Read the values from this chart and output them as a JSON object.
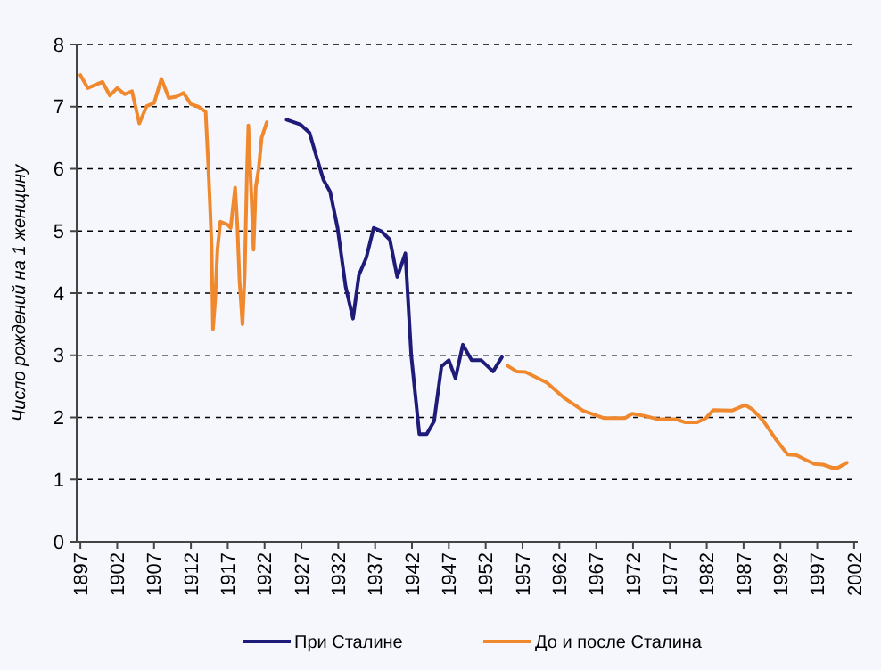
{
  "chart_data": {
    "type": "line",
    "ylabel": "Число рождений на 1 женщину",
    "xlim": [
      1896.5,
      2002.5
    ],
    "ylim": [
      0,
      8
    ],
    "xticks": [
      1897,
      1902,
      1907,
      1912,
      1917,
      1922,
      1927,
      1932,
      1937,
      1942,
      1947,
      1952,
      1957,
      1962,
      1967,
      1972,
      1977,
      1982,
      1987,
      1992,
      1997,
      2002
    ],
    "yticks": [
      0,
      1,
      2,
      3,
      4,
      5,
      6,
      7,
      8
    ],
    "grid": "y",
    "legend": "bottom",
    "line_style": "solid",
    "marker": "none",
    "series": [
      {
        "name": "При Сталине",
        "color": "#1f1b78",
        "x": [
          1925,
          1926.9,
          1928.1,
          1928.9,
          1930,
          1930.9,
          1931.9,
          1933,
          1934,
          1934.8,
          1935.8,
          1936.8,
          1937.8,
          1939,
          1940,
          1941.1,
          1941.9,
          1943,
          1944,
          1945,
          1946,
          1947,
          1947.9,
          1948.9,
          1950.1,
          1951.4,
          1953,
          1954.2
        ],
        "values": [
          6.79,
          6.71,
          6.58,
          6.25,
          5.82,
          5.63,
          5.05,
          4.1,
          3.59,
          4.29,
          4.57,
          5.05,
          5.0,
          4.86,
          4.26,
          4.64,
          3.0,
          1.73,
          1.73,
          1.94,
          2.82,
          2.92,
          2.63,
          3.17,
          2.92,
          2.92,
          2.74,
          2.97
        ]
      },
      {
        "name": "До и после Сталина",
        "color": "#f0892e",
        "x": [
          1897,
          1898,
          1899,
          1900,
          1901,
          1902,
          1903,
          1904,
          1905,
          1906,
          1907,
          1908,
          1909,
          1910,
          1911,
          1912,
          1913,
          1914,
          1914.3,
          1914.6,
          1914.8,
          1915,
          1915.3,
          1915.6,
          1916,
          1917,
          1917.4,
          1918,
          1918.3,
          1918.6,
          1919,
          1919.3,
          1919.6,
          1919.8,
          1920.2,
          1920.5,
          1920.8,
          1921.2,
          1921.6,
          1922.3,
          1940,
          1955,
          1956.2,
          1957.4,
          1960.3,
          1962.7,
          1965.2,
          1968,
          1970.9,
          1971.9,
          1973.8,
          1975.4,
          1977.8,
          1979.1,
          1980.7,
          1981.9,
          1982.9,
          1985.4,
          1987.2,
          1988.2,
          1989.7,
          1991.3,
          1993,
          1994.2,
          1995.4,
          1996.6,
          1997.8,
          1999,
          1999.8,
          2001
        ],
        "values": [
          7.51,
          7.3,
          7.35,
          7.4,
          7.18,
          7.3,
          7.2,
          7.25,
          6.73,
          7.01,
          7.06,
          7.45,
          7.14,
          7.16,
          7.22,
          7.04,
          7.0,
          6.92,
          6.2,
          5.4,
          4.8,
          3.42,
          3.9,
          4.7,
          5.15,
          5.1,
          5.05,
          5.7,
          5.1,
          4.2,
          3.5,
          4.3,
          5.9,
          6.7,
          5.6,
          4.7,
          5.7,
          6.0,
          6.5,
          6.75,
          null,
          2.83,
          2.74,
          2.73,
          2.56,
          2.31,
          2.11,
          1.99,
          1.99,
          2.06,
          2.02,
          1.97,
          1.97,
          1.92,
          1.92,
          1.99,
          2.12,
          2.11,
          2.2,
          2.13,
          1.94,
          1.66,
          1.4,
          1.39,
          1.32,
          1.25,
          1.24,
          1.19,
          1.19,
          1.27
        ]
      }
    ]
  }
}
